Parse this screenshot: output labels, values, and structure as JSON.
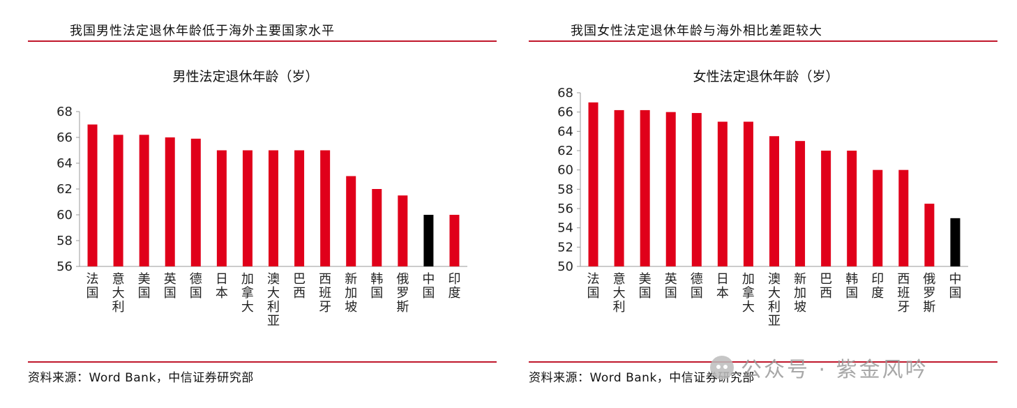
{
  "panels": [
    {
      "header": "我国男性法定退休年龄低于海外主要国家水平",
      "source": "资料来源：Word Bank，中信证券研究部"
    },
    {
      "header": "我国女性法定退休年龄与海外相比差距较大",
      "source": "资料来源：Word Bank，中信证券研究部"
    }
  ],
  "watermark": "公众号 · 紫金风吟",
  "colors": {
    "bar": "#e0001a",
    "highlight": "#000000",
    "rule": "#c0172b"
  },
  "chart_data": [
    {
      "type": "bar",
      "title": "男性法定退休年龄（岁）",
      "categories": [
        "法国",
        "意大利",
        "美国",
        "英国",
        "德国",
        "日本",
        "加拿大",
        "澳大利亚",
        "巴西",
        "西班牙",
        "新加坡",
        "韩国",
        "俄罗斯",
        "中国",
        "印度"
      ],
      "values": [
        67,
        66.2,
        66.2,
        66,
        65.9,
        65,
        65,
        65,
        65,
        65,
        63,
        62,
        61.5,
        60,
        60
      ],
      "highlight": "中国",
      "ylim": [
        56,
        68
      ],
      "yticks": [
        56,
        58,
        60,
        62,
        64,
        66,
        68
      ]
    },
    {
      "type": "bar",
      "title": "女性法定退休年龄（岁）",
      "categories": [
        "法国",
        "意大利",
        "美国",
        "英国",
        "德国",
        "日本",
        "加拿大",
        "澳大利亚",
        "新加坡",
        "巴西",
        "韩国",
        "印度",
        "西班牙",
        "俄罗斯",
        "中国"
      ],
      "values": [
        67,
        66.2,
        66.2,
        66,
        65.9,
        65,
        65,
        63.5,
        63,
        62,
        62,
        60,
        60,
        56.5,
        55
      ],
      "highlight": "中国",
      "ylim": [
        50,
        68
      ],
      "yticks": [
        50,
        52,
        54,
        56,
        58,
        60,
        62,
        64,
        66,
        68
      ]
    }
  ]
}
